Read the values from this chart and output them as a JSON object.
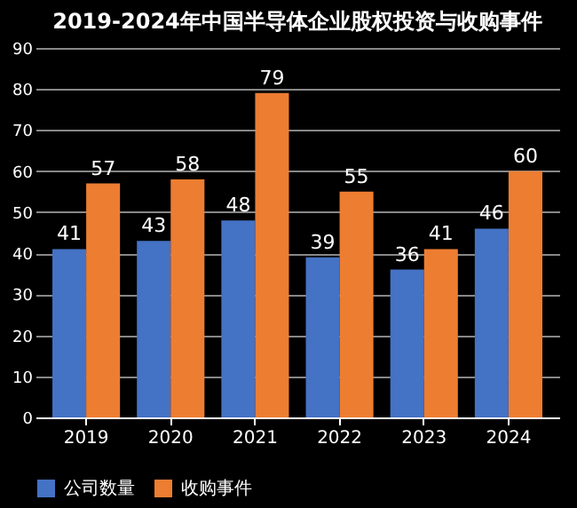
{
  "chart_data": {
    "type": "bar",
    "title": "2019-2024年中国半导体企业股权投资与收购事件",
    "categories": [
      "2019",
      "2020",
      "2021",
      "2022",
      "2023",
      "2024"
    ],
    "series": [
      {
        "name": "公司数量",
        "color": "#4472c4",
        "values": [
          41,
          43,
          48,
          39,
          36,
          46
        ]
      },
      {
        "name": "收购事件",
        "color": "#ed7d31",
        "values": [
          57,
          58,
          79,
          55,
          41,
          60
        ]
      }
    ],
    "ylim": [
      0,
      90
    ],
    "yticks": [
      0,
      10,
      20,
      30,
      40,
      50,
      60,
      70,
      80,
      90
    ],
    "grid": "y",
    "legend": "bottom",
    "data_labels": true
  }
}
